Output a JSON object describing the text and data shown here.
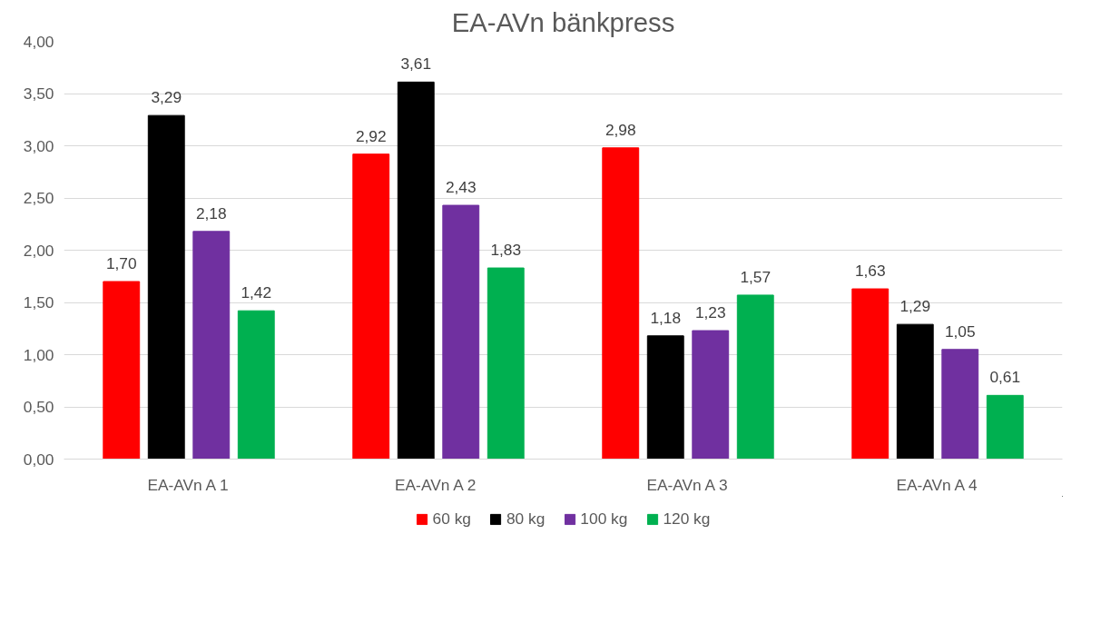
{
  "chart_data": {
    "type": "bar",
    "title": "EA-AVn bänkpress",
    "categories": [
      "EA-AVn A 1",
      "EA-AVn  A 2",
      "EA-AVn A 3",
      "EA-AVn A 4"
    ],
    "series": [
      {
        "name": "60 kg",
        "color": "#ff0000",
        "values": [
          1.7,
          2.92,
          2.98,
          1.63
        ],
        "value_labels": [
          "1,70",
          "2,92",
          "2,98",
          "1,63"
        ]
      },
      {
        "name": "80 kg",
        "color": "#000000",
        "values": [
          3.29,
          3.61,
          1.18,
          1.29
        ],
        "value_labels": [
          "3,29",
          "3,61",
          "1,18",
          "1,29"
        ]
      },
      {
        "name": "100 kg",
        "color": "#7030a0",
        "values": [
          2.18,
          2.43,
          1.23,
          1.05
        ],
        "value_labels": [
          "2,18",
          "2,43",
          "1,23",
          "1,05"
        ]
      },
      {
        "name": "120 kg",
        "color": "#00b050",
        "values": [
          1.42,
          1.83,
          1.57,
          0.61
        ],
        "value_labels": [
          "1,42",
          "1,83",
          "1,57",
          "0,61"
        ]
      }
    ],
    "ylim": [
      0,
      4
    ],
    "yticks": [
      {
        "value": 0,
        "label": "0,00"
      },
      {
        "value": 0.5,
        "label": "0,50"
      },
      {
        "value": 1,
        "label": "1,00"
      },
      {
        "value": 1.5,
        "label": "1,50"
      },
      {
        "value": 2,
        "label": "2,00"
      },
      {
        "value": 2.5,
        "label": "2,50"
      },
      {
        "value": 3,
        "label": "3,00"
      },
      {
        "value": 3.5,
        "label": "3,50"
      },
      {
        "value": 4,
        "label": "4,00"
      }
    ],
    "grid": "y",
    "legend": "bottom"
  }
}
